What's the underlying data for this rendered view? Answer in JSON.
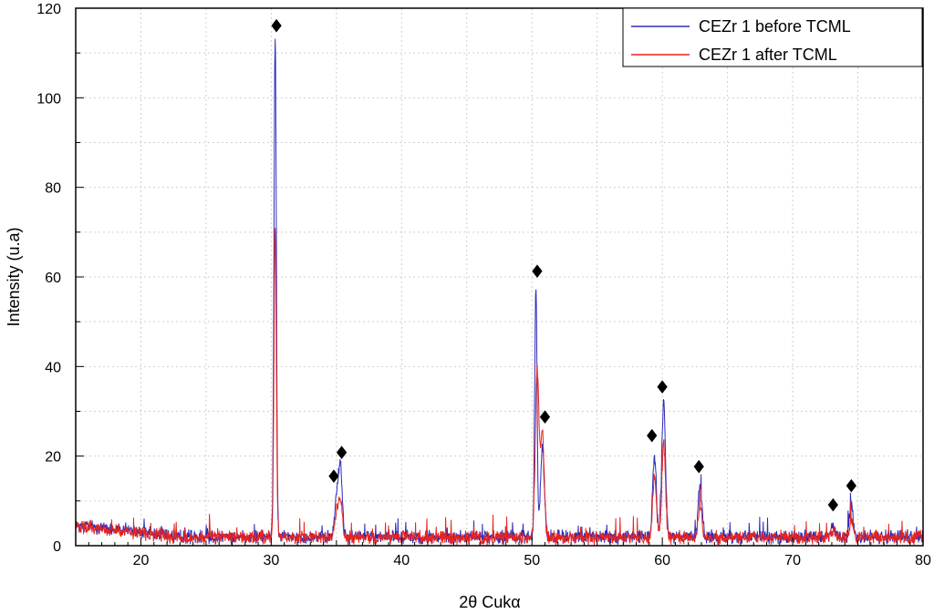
{
  "chart_data": {
    "type": "line",
    "title": "",
    "xlabel": "2θ Cukα",
    "ylabel": "Intensity (u.a)",
    "xlim": [
      15,
      80
    ],
    "ylim": [
      0,
      120
    ],
    "x_ticks": [
      20,
      30,
      40,
      50,
      60,
      70,
      80
    ],
    "y_ticks": [
      0,
      20,
      40,
      60,
      80,
      100,
      120
    ],
    "grid": true,
    "legend_position": "top-right",
    "series": [
      {
        "name": "CEZr 1 before TCML",
        "color": "#2b2bb8",
        "baseline": 2,
        "peaks": [
          {
            "x": 30.3,
            "y": 113
          },
          {
            "x": 35.0,
            "y": 10
          },
          {
            "x": 35.3,
            "y": 18
          },
          {
            "x": 50.3,
            "y": 58
          },
          {
            "x": 50.8,
            "y": 22
          },
          {
            "x": 59.4,
            "y": 20
          },
          {
            "x": 60.1,
            "y": 32
          },
          {
            "x": 62.9,
            "y": 14
          },
          {
            "x": 73.1,
            "y": 5
          },
          {
            "x": 74.5,
            "y": 9
          }
        ]
      },
      {
        "name": "CEZr 1 after TCML",
        "color": "#e8231f",
        "baseline": 1.8,
        "peaks": [
          {
            "x": 30.3,
            "y": 71
          },
          {
            "x": 35.0,
            "y": 7
          },
          {
            "x": 35.3,
            "y": 10
          },
          {
            "x": 50.4,
            "y": 39
          },
          {
            "x": 50.8,
            "y": 25
          },
          {
            "x": 59.4,
            "y": 15
          },
          {
            "x": 60.1,
            "y": 23
          },
          {
            "x": 62.9,
            "y": 9
          },
          {
            "x": 73.1,
            "y": 3
          },
          {
            "x": 74.5,
            "y": 6
          }
        ]
      }
    ],
    "markers": [
      {
        "symbol": "♦",
        "x": 30.4,
        "y": 116
      },
      {
        "symbol": "♦",
        "x": 34.8,
        "y": 15.5
      },
      {
        "symbol": "♦",
        "x": 35.4,
        "y": 20.7
      },
      {
        "symbol": "♦",
        "x": 50.4,
        "y": 61.2
      },
      {
        "symbol": "♦",
        "x": 51.0,
        "y": 28.7
      },
      {
        "symbol": "♦",
        "x": 59.2,
        "y": 24.5
      },
      {
        "symbol": "♦",
        "x": 60.0,
        "y": 35.4
      },
      {
        "symbol": "♦",
        "x": 62.8,
        "y": 17.6
      },
      {
        "symbol": "♦",
        "x": 73.1,
        "y": 9.1
      },
      {
        "symbol": "♦",
        "x": 74.5,
        "y": 13.3
      }
    ]
  }
}
